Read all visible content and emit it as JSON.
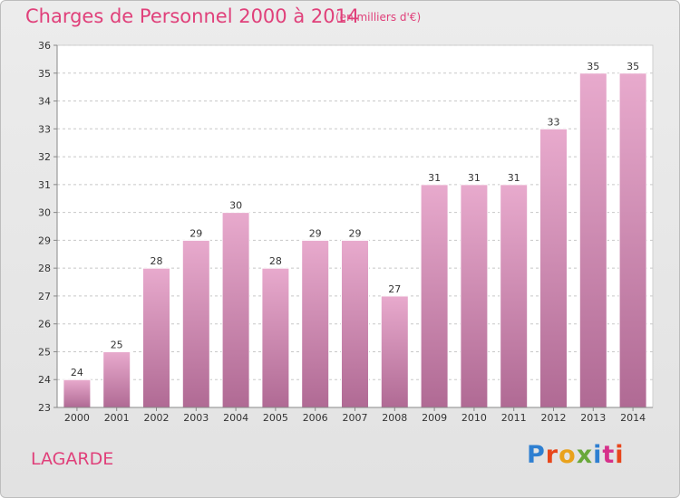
{
  "header": {
    "title": "Charges de Personnel 2000 à 2014",
    "subtitle": "(en milliers d'€)"
  },
  "footer": {
    "place": "LAGARDE",
    "logo": "Proxiti",
    "logo_colors": [
      "#2e7fd1",
      "#e8461b",
      "#e9a21c",
      "#69a83a",
      "#2e7fd1",
      "#d6318b",
      "#e8461b"
    ]
  },
  "chart_data": {
    "type": "bar",
    "categories": [
      "2000",
      "2001",
      "2002",
      "2003",
      "2004",
      "2005",
      "2006",
      "2007",
      "2008",
      "2009",
      "2010",
      "2011",
      "2012",
      "2013",
      "2014"
    ],
    "values": [
      24,
      25,
      28,
      29,
      30,
      28,
      29,
      29,
      27,
      31,
      31,
      31,
      33,
      35,
      35
    ],
    "ylim": [
      23,
      36
    ],
    "yticks": [
      23,
      24,
      25,
      26,
      27,
      28,
      29,
      30,
      31,
      32,
      33,
      34,
      35,
      36
    ],
    "grid": "horizontal dashed",
    "bar_color_top": "#e8aacd",
    "bar_color_bottom": "#b06a94",
    "title": "Charges de Personnel 2000 à 2014",
    "xlabel": "",
    "ylabel": ""
  }
}
